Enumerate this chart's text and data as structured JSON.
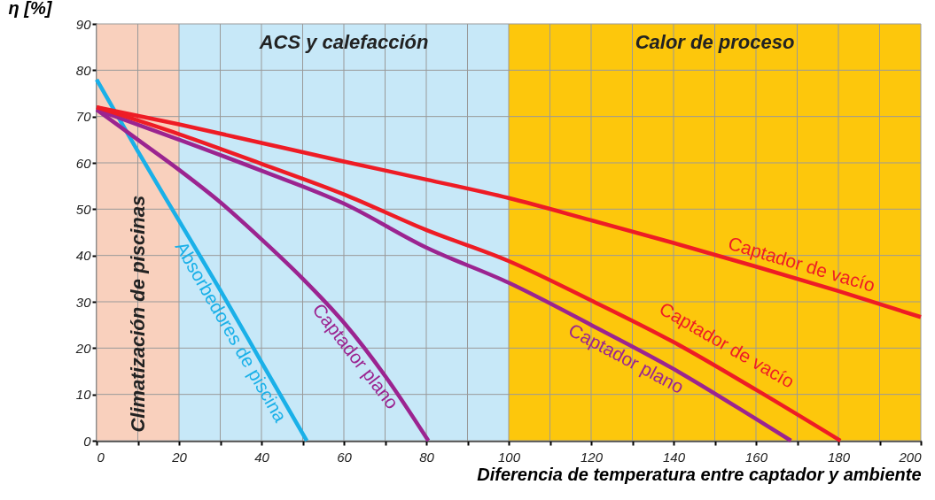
{
  "chart_data": {
    "type": "line",
    "xlabel": "Diferencia de temperatura entre captador y ambiente",
    "ylabel": "η [%]",
    "xlim": [
      0,
      200
    ],
    "ylim": [
      0,
      90
    ],
    "xticks": [
      0,
      {
        "value": 10,
        "label": null
      },
      20,
      {
        "value": 30,
        "label": null
      },
      40,
      {
        "value": 50,
        "label": null
      },
      60,
      {
        "value": 70,
        "label": null
      },
      80,
      {
        "value": 90,
        "label": null
      },
      100,
      {
        "value": 110,
        "label": null
      },
      120,
      {
        "value": 130,
        "label": null
      },
      140,
      {
        "value": 150,
        "label": null
      },
      160,
      {
        "value": 170,
        "label": null
      },
      180,
      {
        "value": 190,
        "label": null
      },
      200
    ],
    "yticks": [
      0,
      10,
      20,
      30,
      40,
      50,
      60,
      70,
      80,
      90
    ],
    "grid": true,
    "legend": false,
    "marker": "none",
    "line_style": "solid",
    "bands": [
      {
        "axis": "x",
        "from": 0,
        "to": 20,
        "label": "Climatización de piscinas",
        "color": "#f9d0bd"
      },
      {
        "axis": "x",
        "from": 20,
        "to": 100,
        "label": "ACS y calefacción",
        "color": "#c7e8f8"
      },
      {
        "axis": "x",
        "from": 100,
        "to": 200,
        "label": "Calor de proceso",
        "color": "#fdc70c"
      }
    ],
    "series": [
      {
        "name": "Absorbedores de piscina",
        "color": "#1ab0e8",
        "x": [
          0,
          10,
          20,
          30,
          40,
          51
        ],
        "values": [
          78,
          62.5,
          47.5,
          32.5,
          17,
          0
        ]
      },
      {
        "name": "Captador plano",
        "color": "#9b2490",
        "x": [
          0,
          10,
          20,
          30,
          40,
          50,
          60,
          70,
          80.5
        ],
        "values": [
          71.5,
          65,
          58.5,
          51.5,
          43.5,
          35,
          25.5,
          14,
          0
        ]
      },
      {
        "name": "Captador plano",
        "color": "#9b2490",
        "x": [
          0,
          20,
          40,
          60,
          80,
          100,
          120,
          140,
          160,
          168.5
        ],
        "values": [
          71.5,
          65,
          58.3,
          51.2,
          41.7,
          34.1,
          25,
          15.5,
          4.7,
          0
        ]
      },
      {
        "name": "Captador de vacío",
        "color": "#ee1c25",
        "x": [
          0,
          20,
          40,
          60,
          80,
          100,
          120,
          140,
          160,
          180.5
        ],
        "values": [
          72,
          66.2,
          59.8,
          53.2,
          45.5,
          38.8,
          30.3,
          21.3,
          11,
          0
        ]
      },
      {
        "name": "Captador de vacío",
        "color": "#ee1c25",
        "x": [
          0,
          20,
          40,
          60,
          80,
          100,
          120,
          140,
          160,
          180,
          200
        ],
        "values": [
          72,
          68.3,
          64.3,
          60.3,
          56.4,
          52.4,
          47.6,
          42.7,
          37.6,
          32.3,
          26.7
        ]
      }
    ]
  }
}
